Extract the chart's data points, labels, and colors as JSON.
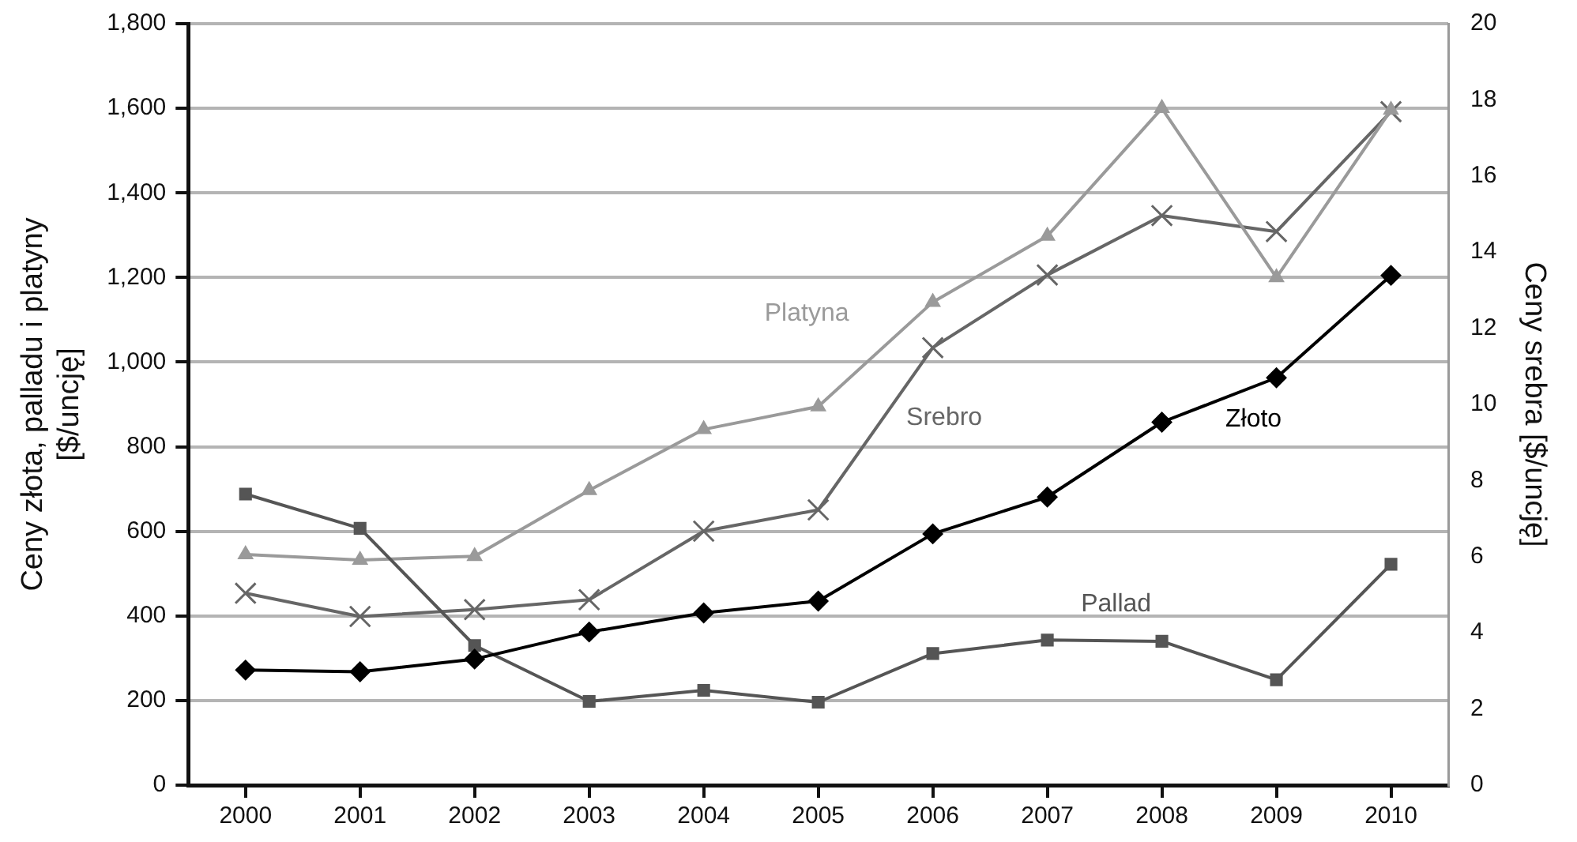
{
  "chart_data": {
    "type": "line",
    "ylabel": "Ceny złota, palladu i platyny\n[$/uncję]",
    "y2label": "Ceny srebra [$/uncję]",
    "categories": [
      "2000",
      "2001",
      "2002",
      "2003",
      "2004",
      "2005",
      "2006",
      "2007",
      "2008",
      "2009",
      "2010"
    ],
    "series": [
      {
        "name": "Złoto",
        "color": "#000000",
        "marker": "diamond",
        "values": [
          272,
          268,
          298,
          362,
          407,
          435,
          594,
          681,
          858,
          963,
          1205
        ]
      },
      {
        "name": "Pallad",
        "color": "#555555",
        "marker": "square",
        "values": [
          688,
          607,
          330,
          198,
          224,
          196,
          311,
          343,
          340,
          249,
          522
        ]
      },
      {
        "name": "Platyna",
        "color": "#9a9a9a",
        "marker": "triangle",
        "values": [
          545,
          532,
          541,
          697,
          841,
          895,
          1142,
          1298,
          1600,
          1200,
          1596
        ]
      },
      {
        "name": "Srebro",
        "color": "#666666",
        "marker": "cross",
        "axis": "y2",
        "values": [
          5.04,
          4.43,
          4.61,
          4.87,
          6.67,
          7.23,
          11.49,
          13.4,
          14.96,
          14.54,
          17.69
        ]
      }
    ],
    "ylim": [
      0,
      1800
    ],
    "yticks": [
      0,
      200,
      400,
      600,
      800,
      {
        "value": 1000,
        "label": "1,000"
      },
      {
        "value": 1200,
        "label": "1,200"
      },
      {
        "value": 1400,
        "label": "1,400"
      },
      {
        "value": 1600,
        "label": "1,600"
      },
      {
        "value": 1800,
        "label": "1,800"
      }
    ],
    "y2lim": [
      0,
      20
    ],
    "y2ticks": [
      0,
      2,
      4,
      6,
      8,
      10,
      12,
      14,
      16,
      18,
      20
    ],
    "grid": "y",
    "legend": false,
    "line_style": "solid"
  }
}
